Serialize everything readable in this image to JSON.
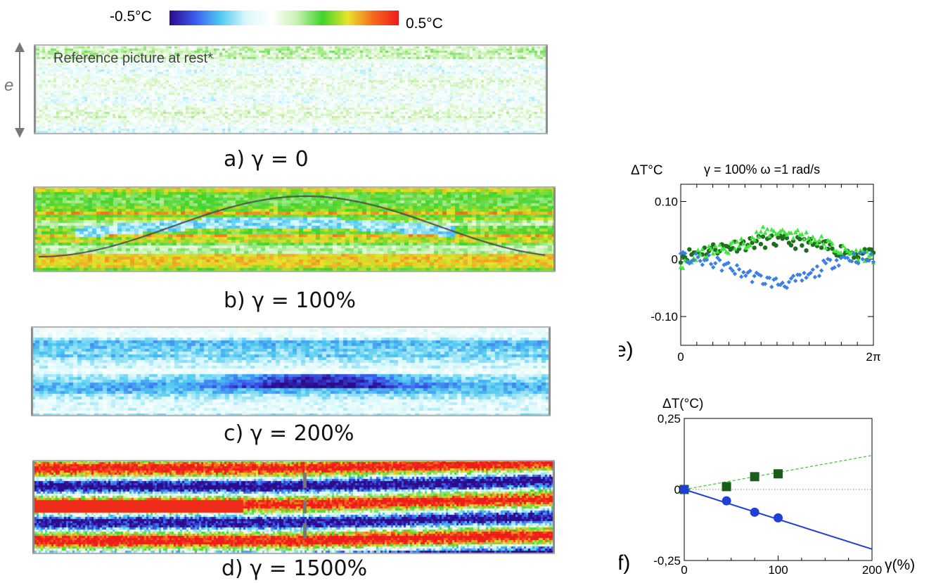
{
  "colorbar": {
    "min_label": "-0.5°C",
    "max_label": "0.5°C",
    "colors": [
      "#2c0a8c",
      "#3a5cf0",
      "#4ec9f0",
      "#d8f8fb",
      "#ffffff",
      "#c8f2b0",
      "#3fd32a",
      "#e9e32c",
      "#f56a1c",
      "#ee1b1b"
    ]
  },
  "panels": {
    "a": {
      "caption": "a) γ = 0",
      "title": "Reference picture at rest*",
      "gap_label": "e"
    },
    "b": {
      "caption": "b) γ = 100%"
    },
    "c": {
      "caption": "c) γ = 200%"
    },
    "d": {
      "caption": "d)  γ = 1500%"
    }
  },
  "chart_data": [
    {
      "panel": "e",
      "panel_label": "e)",
      "type": "scatter",
      "title": "γ = 100%  ω =1 rad/s",
      "ylabel": "ΔT°C",
      "xlabel": "",
      "x_ticks": [
        "0",
        "2π"
      ],
      "y_ticks": [
        "0.10",
        "0",
        "-0.10"
      ],
      "xlim": [
        0,
        6.283
      ],
      "ylim": [
        -0.15,
        0.13
      ],
      "series": [
        {
          "color": "#1f6d1f",
          "marker": "circle",
          "x": [
            0,
            0.52,
            1.05,
            1.57,
            2.09,
            2.62,
            3.14,
            3.67,
            4.19,
            4.71,
            5.24,
            5.76,
            6.28
          ],
          "y": [
            0.005,
            0.012,
            0.018,
            0.022,
            0.026,
            0.03,
            0.031,
            0.029,
            0.025,
            0.02,
            0.015,
            0.01,
            0.005
          ]
        },
        {
          "color": "#3ee63e",
          "marker": "triangle",
          "x": [
            0,
            0.52,
            1.05,
            1.57,
            2.09,
            2.62,
            3.14,
            3.67,
            4.19,
            4.71,
            5.24,
            5.76,
            6.28
          ],
          "y": [
            -0.015,
            0.005,
            0.015,
            0.02,
            0.03,
            0.045,
            0.05,
            0.045,
            0.04,
            0.028,
            0.015,
            0.01,
            0.005
          ]
        },
        {
          "color": "#3a7ee6",
          "marker": "diamond",
          "x": [
            0,
            0.52,
            1.05,
            1.57,
            2.09,
            2.62,
            3.14,
            3.67,
            4.19,
            4.71,
            5.24,
            5.76,
            6.28
          ],
          "y": [
            0.002,
            -0.002,
            -0.005,
            -0.015,
            -0.025,
            -0.035,
            -0.042,
            -0.04,
            -0.03,
            -0.012,
            0.002,
            0.003,
            0.0
          ]
        }
      ]
    },
    {
      "panel": "f",
      "panel_label": "f)",
      "type": "scatter",
      "ylabel": "ΔT(°C)",
      "xlabel": "γ(%)",
      "x_ticks": [
        "0",
        "100",
        "200"
      ],
      "y_ticks": [
        "0,25",
        "0",
        "-0,25"
      ],
      "xlim": [
        0,
        200
      ],
      "ylim": [
        -0.25,
        0.25
      ],
      "series": [
        {
          "color": "#1a5c1a",
          "marker": "square",
          "x": [
            0,
            45,
            75,
            100
          ],
          "y": [
            0,
            0.01,
            0.045,
            0.055
          ]
        },
        {
          "color": "#1f3fd6",
          "marker": "circle",
          "x": [
            0,
            45,
            75,
            100
          ],
          "y": [
            0,
            -0.04,
            -0.08,
            -0.1
          ]
        }
      ],
      "fit_lines": [
        {
          "color": "#37c837",
          "style": "dashed",
          "x": [
            0,
            200
          ],
          "y": [
            0,
            0.12
          ]
        },
        {
          "color": "#1f3fd6",
          "style": "solid",
          "x": [
            0,
            200
          ],
          "y": [
            0,
            -0.21
          ]
        }
      ]
    }
  ]
}
